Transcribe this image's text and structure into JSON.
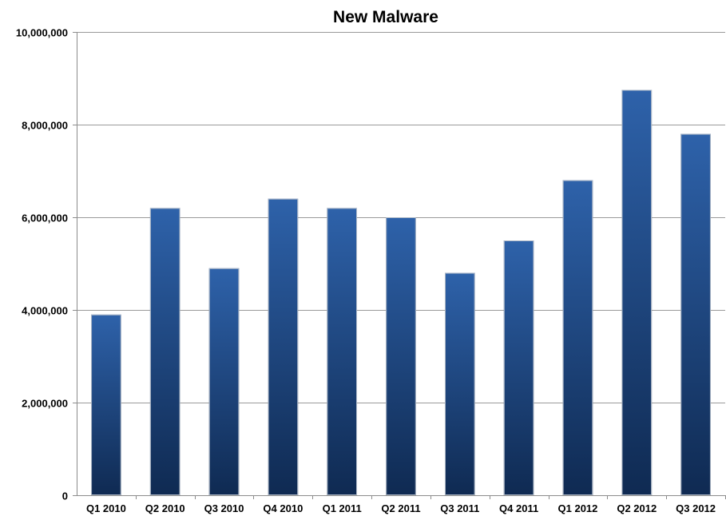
{
  "chart_data": {
    "type": "bar",
    "title": "New Malware",
    "xlabel": "",
    "ylabel": "",
    "categories": [
      "Q1 2010",
      "Q2 2010",
      "Q3 2010",
      "Q4 2010",
      "Q1 2011",
      "Q2 2011",
      "Q3 2011",
      "Q4 2011",
      "Q1 2012",
      "Q2 2012",
      "Q3 2012"
    ],
    "values": [
      3900000,
      6200000,
      4900000,
      6400000,
      6200000,
      6000000,
      4800000,
      5500000,
      6800000,
      8750000,
      7800000
    ],
    "ylim": [
      0,
      10000000
    ],
    "yticks": [
      0,
      2000000,
      4000000,
      6000000,
      8000000,
      10000000
    ],
    "ytick_labels": [
      "0",
      "2,000,000",
      "4,000,000",
      "6,000,000",
      "8,000,000",
      "10,000,000"
    ],
    "grid": true,
    "legend": "none",
    "colors": {
      "bar_top": "#2d5fa6",
      "bar_bottom": "#0f2a52",
      "grid": "#9a9a9a"
    }
  }
}
